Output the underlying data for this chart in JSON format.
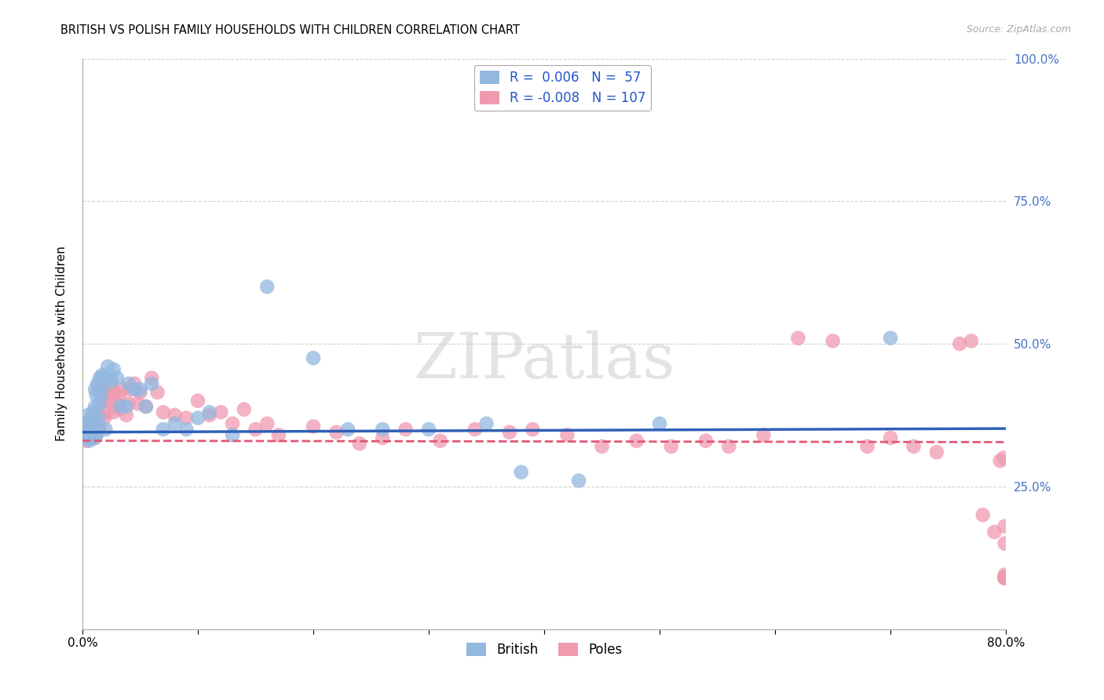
{
  "title": "BRITISH VS POLISH FAMILY HOUSEHOLDS WITH CHILDREN CORRELATION CHART",
  "source": "Source: ZipAtlas.com",
  "ylabel": "Family Households with Children",
  "xlim": [
    0.0,
    0.8
  ],
  "ylim": [
    0.0,
    1.0
  ],
  "ytick_vals": [
    0.25,
    0.5,
    0.75,
    1.0
  ],
  "ytick_labels": [
    "25.0%",
    "50.0%",
    "75.0%",
    "100.0%"
  ],
  "xtick_vals": [
    0.0,
    0.1,
    0.2,
    0.3,
    0.4,
    0.5,
    0.6,
    0.7,
    0.8
  ],
  "xtick_labels": [
    "0.0%",
    "",
    "",
    "",
    "",
    "",
    "",
    "",
    "80.0%"
  ],
  "british_color": "#92b8e0",
  "poles_color": "#f09ab0",
  "british_line_color": "#3060b8",
  "poles_line_color": "#e05878",
  "british_line_y_intercept": 0.345,
  "british_line_slope": 0.008,
  "poles_line_y_intercept": 0.33,
  "poles_line_slope": -0.003,
  "watermark": "ZIPatlas",
  "legend_label1": "R =  0.006   N =  57",
  "legend_label2": "R = -0.008   N = 107",
  "legend_color1": "#92b8e0",
  "legend_color2": "#f09ab0",
  "legend_text_color": "#2255cc",
  "bottom_legend_labels": [
    "British",
    "Poles"
  ],
  "british_x": [
    0.002,
    0.003,
    0.004,
    0.004,
    0.005,
    0.005,
    0.006,
    0.006,
    0.007,
    0.007,
    0.008,
    0.008,
    0.009,
    0.009,
    0.01,
    0.01,
    0.011,
    0.011,
    0.012,
    0.012,
    0.013,
    0.013,
    0.014,
    0.015,
    0.015,
    0.016,
    0.017,
    0.018,
    0.02,
    0.02,
    0.022,
    0.025,
    0.027,
    0.03,
    0.033,
    0.038,
    0.04,
    0.045,
    0.05,
    0.055,
    0.06,
    0.07,
    0.08,
    0.09,
    0.1,
    0.11,
    0.13,
    0.16,
    0.2,
    0.23,
    0.26,
    0.3,
    0.35,
    0.38,
    0.43,
    0.5,
    0.7
  ],
  "british_y": [
    0.335,
    0.34,
    0.345,
    0.36,
    0.355,
    0.375,
    0.33,
    0.35,
    0.335,
    0.36,
    0.34,
    0.37,
    0.345,
    0.38,
    0.335,
    0.36,
    0.42,
    0.39,
    0.34,
    0.41,
    0.355,
    0.43,
    0.37,
    0.395,
    0.44,
    0.41,
    0.445,
    0.425,
    0.35,
    0.44,
    0.46,
    0.435,
    0.455,
    0.44,
    0.39,
    0.39,
    0.43,
    0.42,
    0.42,
    0.39,
    0.43,
    0.35,
    0.36,
    0.35,
    0.37,
    0.38,
    0.34,
    0.6,
    0.475,
    0.35,
    0.35,
    0.35,
    0.36,
    0.275,
    0.26,
    0.36,
    0.51
  ],
  "poles_x": [
    0.002,
    0.003,
    0.003,
    0.004,
    0.004,
    0.005,
    0.005,
    0.006,
    0.006,
    0.007,
    0.007,
    0.008,
    0.008,
    0.009,
    0.009,
    0.01,
    0.01,
    0.011,
    0.011,
    0.012,
    0.012,
    0.013,
    0.014,
    0.015,
    0.015,
    0.016,
    0.017,
    0.018,
    0.019,
    0.02,
    0.021,
    0.022,
    0.023,
    0.025,
    0.027,
    0.028,
    0.03,
    0.032,
    0.033,
    0.035,
    0.038,
    0.04,
    0.042,
    0.045,
    0.048,
    0.05,
    0.055,
    0.06,
    0.065,
    0.07,
    0.08,
    0.09,
    0.1,
    0.11,
    0.12,
    0.13,
    0.14,
    0.15,
    0.16,
    0.17,
    0.2,
    0.22,
    0.24,
    0.26,
    0.28,
    0.31,
    0.34,
    0.37,
    0.39,
    0.42,
    0.45,
    0.48,
    0.51,
    0.54,
    0.56,
    0.59,
    0.62,
    0.65,
    0.68,
    0.7,
    0.72,
    0.74,
    0.76,
    0.77,
    0.78,
    0.79,
    0.795,
    0.798,
    0.799,
    0.799,
    0.799,
    0.799,
    0.799,
    0.799,
    0.799,
    0.799,
    0.799,
    0.799,
    0.799,
    0.799,
    0.799,
    0.799,
    0.799,
    0.799,
    0.799,
    0.799,
    0.799
  ],
  "poles_y": [
    0.34,
    0.355,
    0.33,
    0.34,
    0.36,
    0.335,
    0.355,
    0.34,
    0.36,
    0.335,
    0.355,
    0.34,
    0.36,
    0.335,
    0.355,
    0.34,
    0.36,
    0.335,
    0.37,
    0.34,
    0.36,
    0.38,
    0.42,
    0.395,
    0.355,
    0.41,
    0.43,
    0.4,
    0.37,
    0.42,
    0.38,
    0.41,
    0.4,
    0.43,
    0.38,
    0.415,
    0.395,
    0.41,
    0.385,
    0.42,
    0.375,
    0.395,
    0.42,
    0.43,
    0.395,
    0.415,
    0.39,
    0.44,
    0.415,
    0.38,
    0.375,
    0.37,
    0.4,
    0.375,
    0.38,
    0.36,
    0.385,
    0.35,
    0.36,
    0.34,
    0.355,
    0.345,
    0.325,
    0.335,
    0.35,
    0.33,
    0.35,
    0.345,
    0.35,
    0.34,
    0.32,
    0.33,
    0.32,
    0.33,
    0.32,
    0.34,
    0.51,
    0.505,
    0.32,
    0.335,
    0.32,
    0.31,
    0.5,
    0.505,
    0.2,
    0.17,
    0.295,
    0.3,
    0.18,
    0.15,
    0.09,
    0.095,
    0.09,
    0.09,
    0.09,
    0.09,
    0.09,
    0.09,
    0.09,
    0.09,
    0.09,
    0.09,
    0.09,
    0.09,
    0.09,
    0.09,
    0.09
  ]
}
